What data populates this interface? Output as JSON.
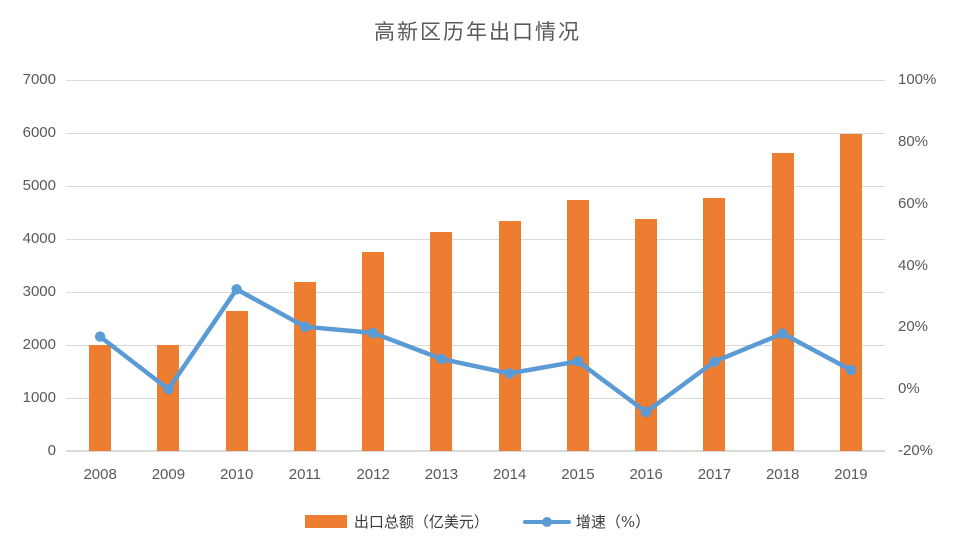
{
  "chart_data": {
    "type": "bar+line combo",
    "title": "高新区历年出口情况",
    "categories": [
      "2008",
      "2009",
      "2010",
      "2011",
      "2012",
      "2013",
      "2014",
      "2015",
      "2016",
      "2017",
      "2018",
      "2019"
    ],
    "series": [
      {
        "name": "出口总额（亿美元）",
        "type": "bar",
        "axis": "left",
        "values": [
          2000,
          2000,
          2645,
          3180,
          3760,
          4130,
          4340,
          4730,
          4380,
          4770,
          5630,
          5980
        ]
      },
      {
        "name": "增速（%）",
        "type": "line",
        "axis": "right",
        "values": [
          17,
          0,
          32.3,
          20.2,
          18.2,
          9.8,
          5.1,
          9.0,
          -7.4,
          8.9,
          18.0,
          6.2
        ]
      }
    ],
    "left_axis": {
      "min": 0,
      "max": 7000,
      "step": 1000,
      "labels": [
        "0",
        "1000",
        "2000",
        "3000",
        "4000",
        "5000",
        "6000",
        "7000"
      ]
    },
    "right_axis": {
      "min": -20,
      "max": 100,
      "step": 20,
      "labels": [
        "-20%",
        "0%",
        "20%",
        "40%",
        "60%",
        "80%",
        "100%"
      ]
    },
    "grid": "horizontal",
    "legend_position": "bottom",
    "colors": {
      "bar": "#ED7D31",
      "line": "#5B9BD5",
      "gridline": "#D9D9D9",
      "axis_text": "#595959",
      "title_text": "#595959",
      "background": "#FFFFFF"
    }
  }
}
